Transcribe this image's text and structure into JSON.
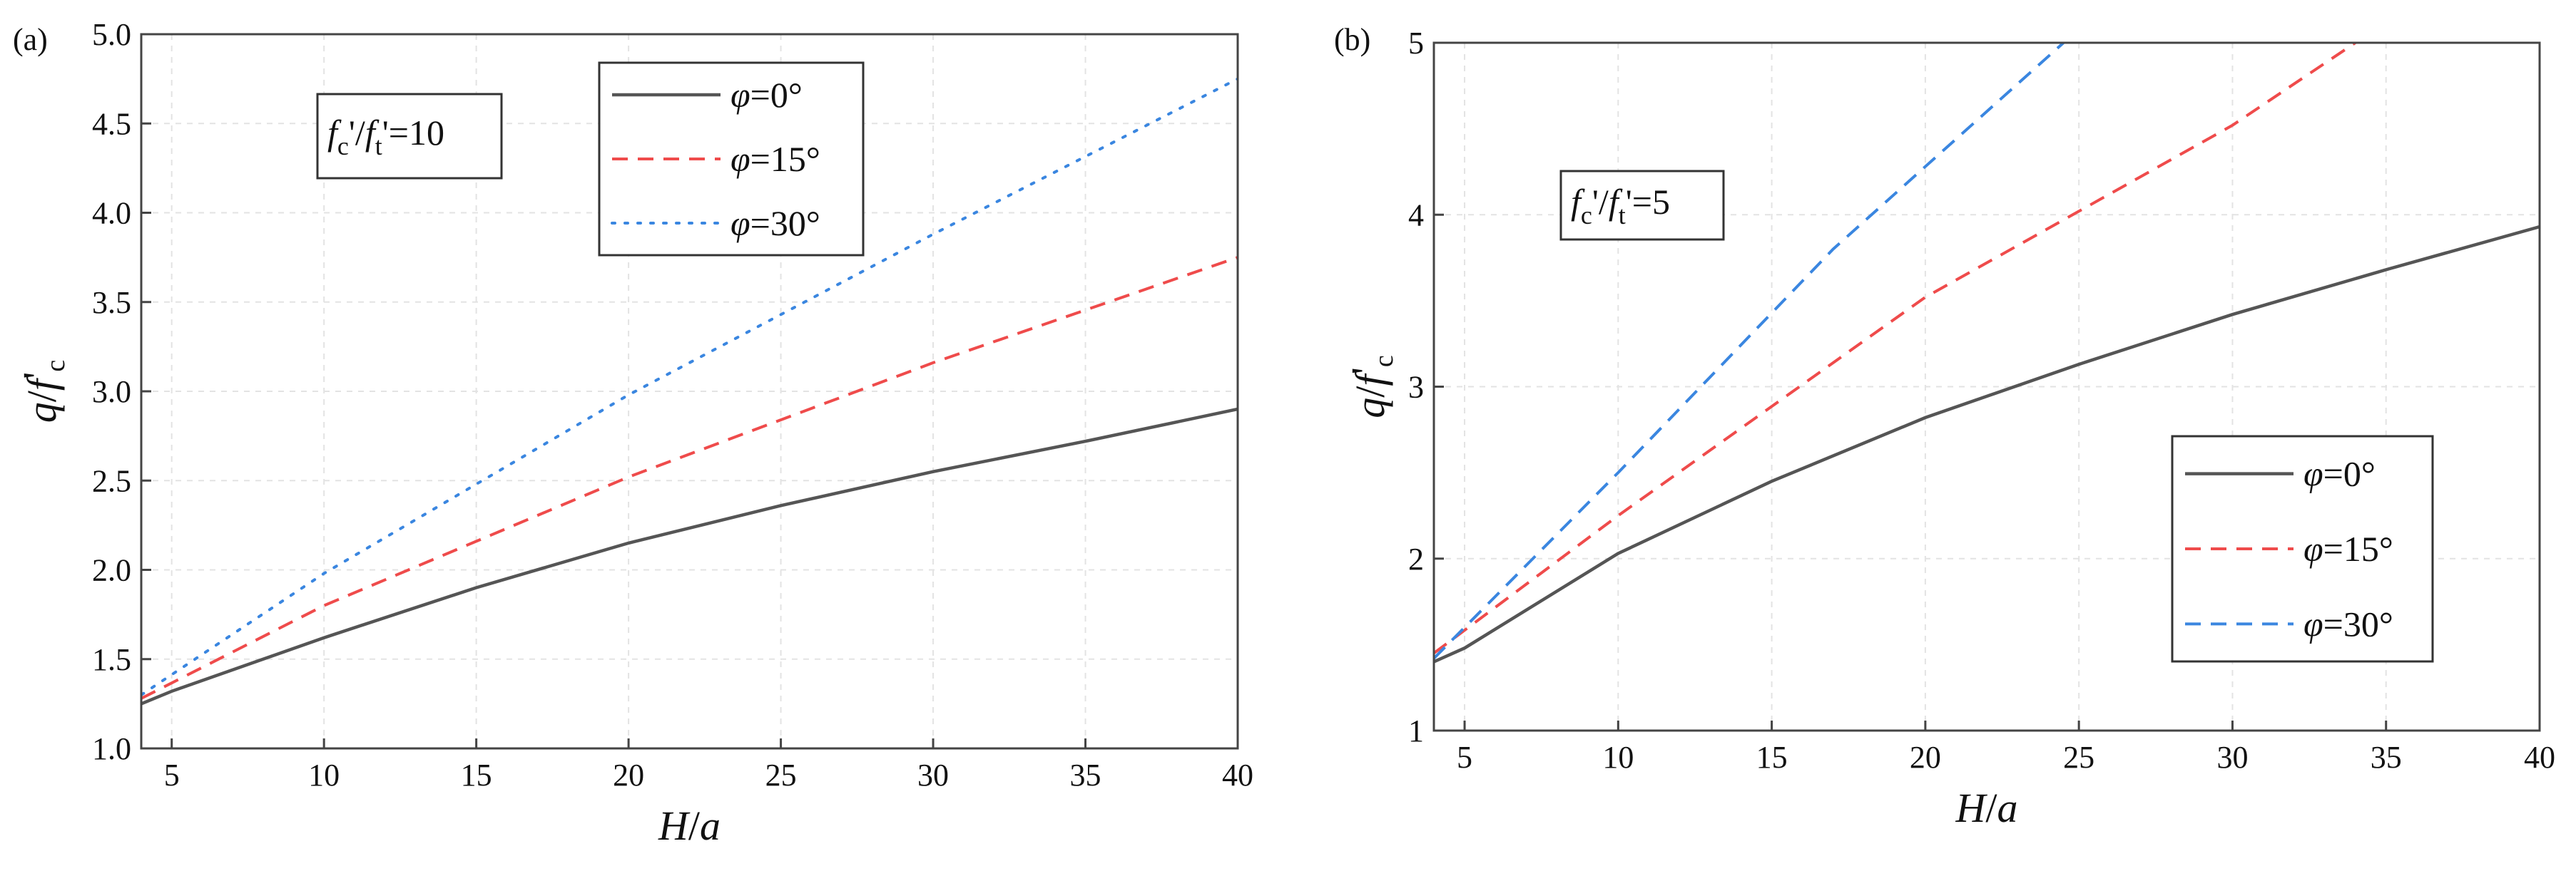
{
  "chart_data": [
    {
      "type": "line",
      "panel_label": "(a)",
      "xlabel": {
        "var": "H",
        "sep": "/",
        "den": "a"
      },
      "ylabel": {
        "var": "q",
        "sep": "/",
        "den": "f",
        "den_sub": "c",
        "den_prime": "'"
      },
      "xlim": [
        4,
        40
      ],
      "ylim": [
        1.0,
        5.0
      ],
      "xticks": [
        5,
        10,
        15,
        20,
        25,
        30,
        35,
        40
      ],
      "yticks": [
        1.0,
        1.5,
        2.0,
        2.5,
        3.0,
        3.5,
        4.0,
        4.5,
        5.0
      ],
      "ytick_decimals": 1,
      "grid": true,
      "annotation": {
        "a": "f",
        "a_sub": "c",
        "prime": "'",
        "sep": "/",
        "b": "f",
        "b_sub": "t",
        "eq": "=10"
      },
      "legend": [
        {
          "label_var": "φ",
          "label_rest": "=0°"
        },
        {
          "label_var": "φ",
          "label_rest": "=15°"
        },
        {
          "label_var": "φ",
          "label_rest": "=30°"
        }
      ],
      "series": [
        {
          "name": "φ=0°",
          "color": "#555555",
          "dash": "solid",
          "x": [
            4,
            5,
            10,
            15,
            20,
            25,
            30,
            35,
            40
          ],
          "y": [
            1.25,
            1.32,
            1.62,
            1.9,
            2.15,
            2.36,
            2.55,
            2.72,
            2.9
          ]
        },
        {
          "name": "φ=15°",
          "color": "#ef4b4b",
          "dash": "dashed",
          "x": [
            4,
            10,
            20,
            30,
            40
          ],
          "y": [
            1.28,
            1.8,
            2.52,
            3.16,
            3.75
          ]
        },
        {
          "name": "φ=30°",
          "color": "#3a86e0",
          "dash": "dotted",
          "x": [
            4,
            10,
            20,
            30,
            40
          ],
          "y": [
            1.3,
            1.98,
            2.98,
            3.88,
            4.75
          ]
        }
      ]
    },
    {
      "type": "line",
      "panel_label": "(b)",
      "xlabel": {
        "var": "H",
        "sep": "/",
        "den": "a"
      },
      "ylabel": {
        "var": "q",
        "sep": "/",
        "den": "f",
        "den_sub": "c",
        "den_prime": "'"
      },
      "xlim": [
        4,
        40
      ],
      "ylim": [
        1,
        5
      ],
      "xticks": [
        5,
        10,
        15,
        20,
        25,
        30,
        35,
        40
      ],
      "yticks": [
        1,
        2,
        3,
        4,
        5
      ],
      "ytick_decimals": 0,
      "grid": true,
      "annotation": {
        "a": "f",
        "a_sub": "c",
        "prime": "'",
        "sep": "/",
        "b": "f",
        "b_sub": "t",
        "eq": "=5"
      },
      "legend": [
        {
          "label_var": "φ",
          "label_rest": "=0°"
        },
        {
          "label_var": "φ",
          "label_rest": "=15°"
        },
        {
          "label_var": "φ",
          "label_rest": "=30°"
        }
      ],
      "series": [
        {
          "name": "φ=0°",
          "color": "#555555",
          "dash": "solid",
          "x": [
            4,
            5,
            10,
            15,
            20,
            25,
            30,
            35,
            40
          ],
          "y": [
            1.4,
            1.48,
            2.03,
            2.45,
            2.82,
            3.13,
            3.42,
            3.68,
            3.93
          ]
        },
        {
          "name": "φ=15°",
          "color": "#ef4b4b",
          "dash": "dashed",
          "x": [
            4,
            10,
            20,
            30,
            34
          ],
          "y": [
            1.45,
            2.25,
            3.52,
            4.52,
            5.0
          ]
        },
        {
          "name": "φ=30°",
          "color": "#3a86e0",
          "dash": "dashed",
          "x": [
            4,
            10,
            17,
            24.5
          ],
          "y": [
            1.42,
            2.5,
            3.8,
            5.0
          ]
        }
      ]
    }
  ]
}
